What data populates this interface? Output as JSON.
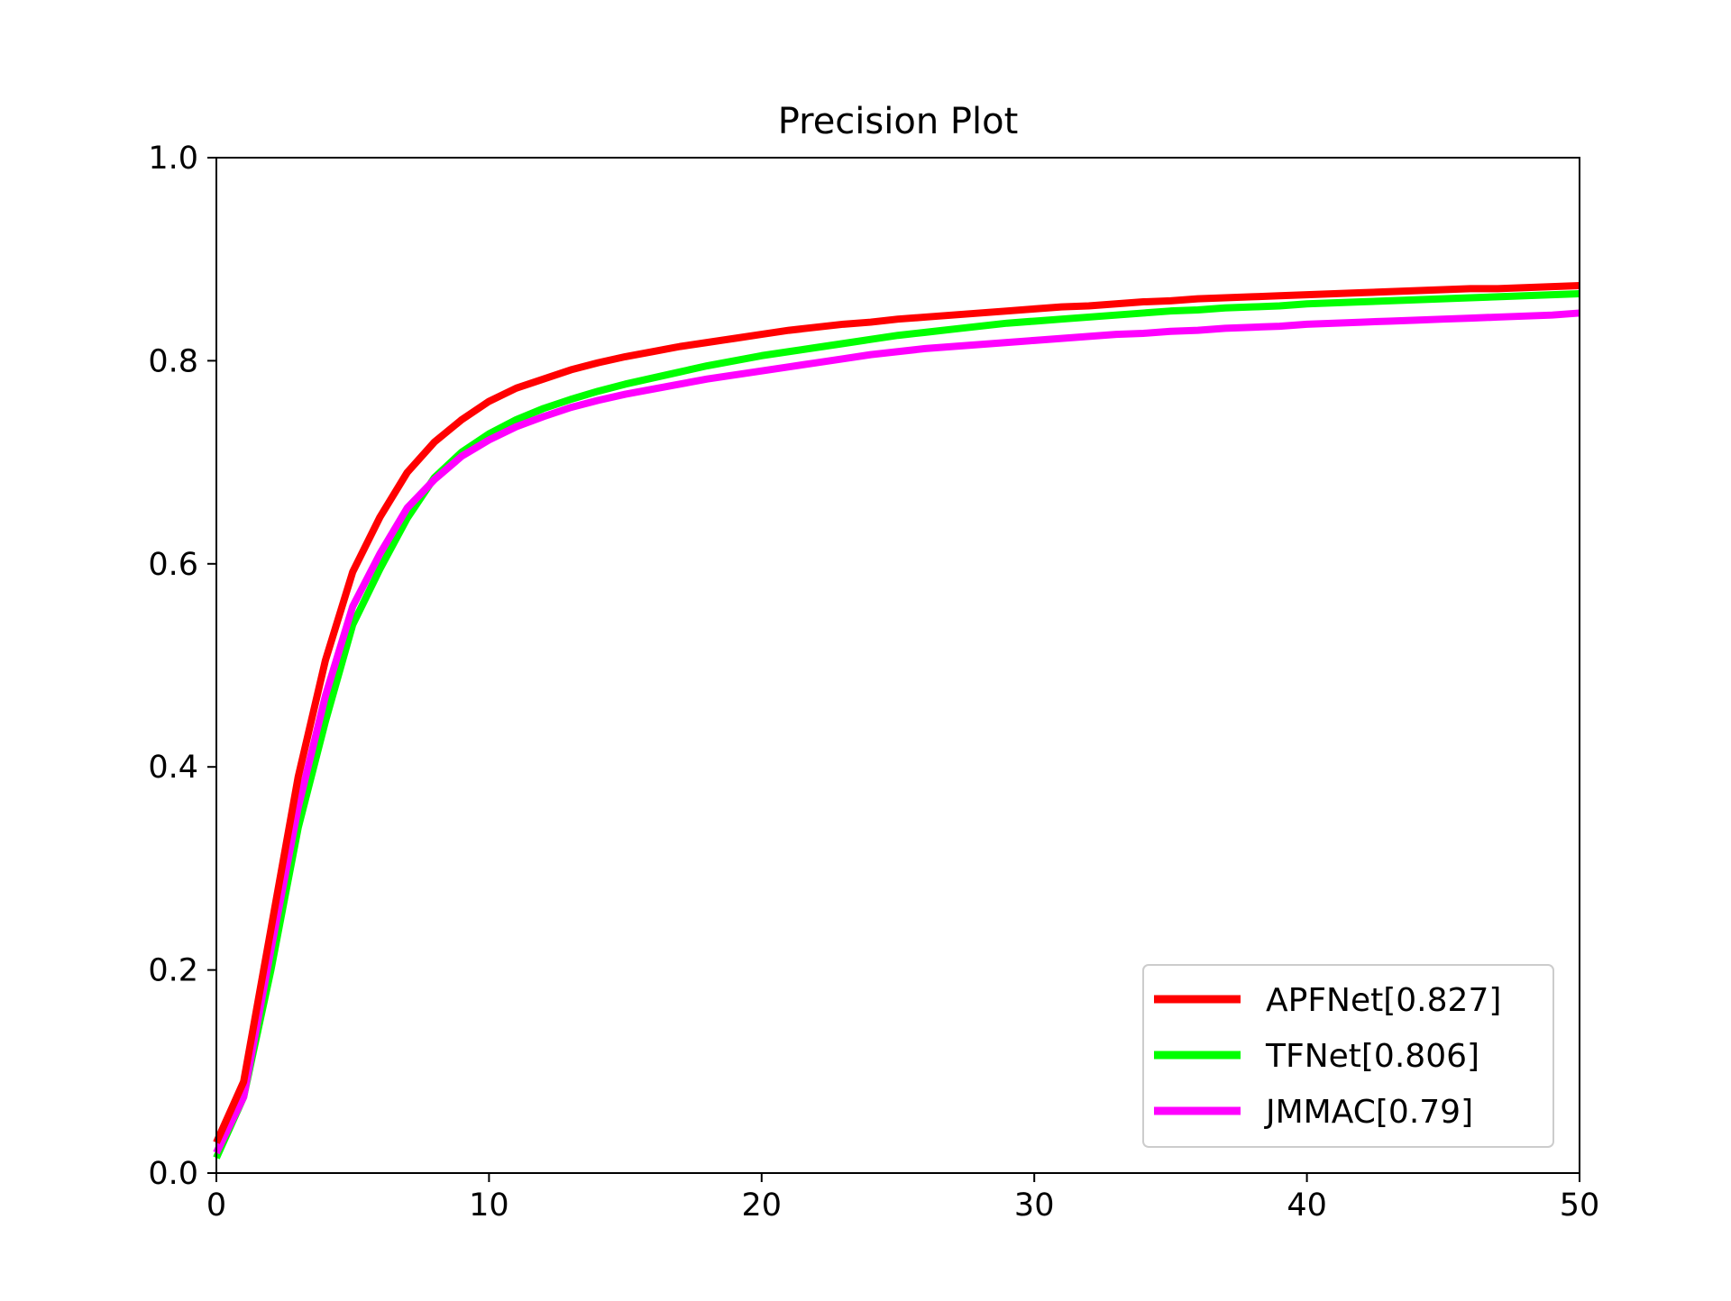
{
  "chart_data": {
    "type": "line",
    "title": "Precision Plot",
    "xlabel": "",
    "ylabel": "",
    "xlim": [
      0,
      50
    ],
    "ylim": [
      0,
      1.0
    ],
    "x_ticks": [
      0,
      10,
      20,
      30,
      40,
      50
    ],
    "x_tick_labels": [
      "0",
      "10",
      "20",
      "30",
      "40",
      "50"
    ],
    "y_ticks": [
      0.0,
      0.2,
      0.4,
      0.6,
      0.8,
      1.0
    ],
    "y_tick_labels": [
      "0.0",
      "0.2",
      "0.4",
      "0.6",
      "0.8",
      "1.0"
    ],
    "grid": false,
    "legend_position": "lower-right",
    "x": [
      0,
      1,
      2,
      3,
      4,
      5,
      6,
      7,
      8,
      9,
      10,
      11,
      12,
      13,
      14,
      15,
      16,
      17,
      18,
      19,
      20,
      21,
      22,
      23,
      24,
      25,
      26,
      27,
      28,
      29,
      30,
      31,
      32,
      33,
      34,
      35,
      36,
      37,
      38,
      39,
      40,
      41,
      42,
      43,
      44,
      45,
      46,
      47,
      48,
      49,
      50
    ],
    "series": [
      {
        "name": "APFNet[0.827]",
        "color": "#ff0000",
        "values": [
          0.03,
          0.09,
          0.24,
          0.39,
          0.505,
          0.592,
          0.646,
          0.69,
          0.72,
          0.742,
          0.76,
          0.773,
          0.782,
          0.791,
          0.798,
          0.804,
          0.809,
          0.814,
          0.818,
          0.822,
          0.826,
          0.83,
          0.833,
          0.836,
          0.838,
          0.841,
          0.843,
          0.845,
          0.847,
          0.849,
          0.851,
          0.853,
          0.854,
          0.856,
          0.858,
          0.859,
          0.861,
          0.862,
          0.863,
          0.864,
          0.865,
          0.866,
          0.867,
          0.868,
          0.869,
          0.87,
          0.871,
          0.871,
          0.872,
          0.873,
          0.874
        ]
      },
      {
        "name": "TFNet[0.806]",
        "color": "#00ff00",
        "values": [
          0.015,
          0.075,
          0.2,
          0.34,
          0.445,
          0.54,
          0.595,
          0.645,
          0.685,
          0.71,
          0.728,
          0.742,
          0.753,
          0.762,
          0.77,
          0.777,
          0.783,
          0.789,
          0.795,
          0.8,
          0.805,
          0.809,
          0.813,
          0.817,
          0.821,
          0.825,
          0.828,
          0.831,
          0.834,
          0.837,
          0.839,
          0.841,
          0.843,
          0.845,
          0.847,
          0.849,
          0.85,
          0.852,
          0.853,
          0.854,
          0.856,
          0.857,
          0.858,
          0.859,
          0.86,
          0.861,
          0.862,
          0.863,
          0.864,
          0.865,
          0.866
        ]
      },
      {
        "name": "JMMAC[0.79]",
        "color": "#ff00ff",
        "values": [
          0.02,
          0.075,
          0.22,
          0.36,
          0.47,
          0.558,
          0.61,
          0.655,
          0.683,
          0.706,
          0.722,
          0.735,
          0.745,
          0.754,
          0.761,
          0.767,
          0.772,
          0.777,
          0.782,
          0.786,
          0.79,
          0.794,
          0.798,
          0.802,
          0.806,
          0.809,
          0.812,
          0.814,
          0.816,
          0.818,
          0.82,
          0.822,
          0.824,
          0.826,
          0.827,
          0.829,
          0.83,
          0.832,
          0.833,
          0.834,
          0.836,
          0.837,
          0.838,
          0.839,
          0.84,
          0.841,
          0.842,
          0.843,
          0.844,
          0.845,
          0.847
        ]
      }
    ]
  }
}
